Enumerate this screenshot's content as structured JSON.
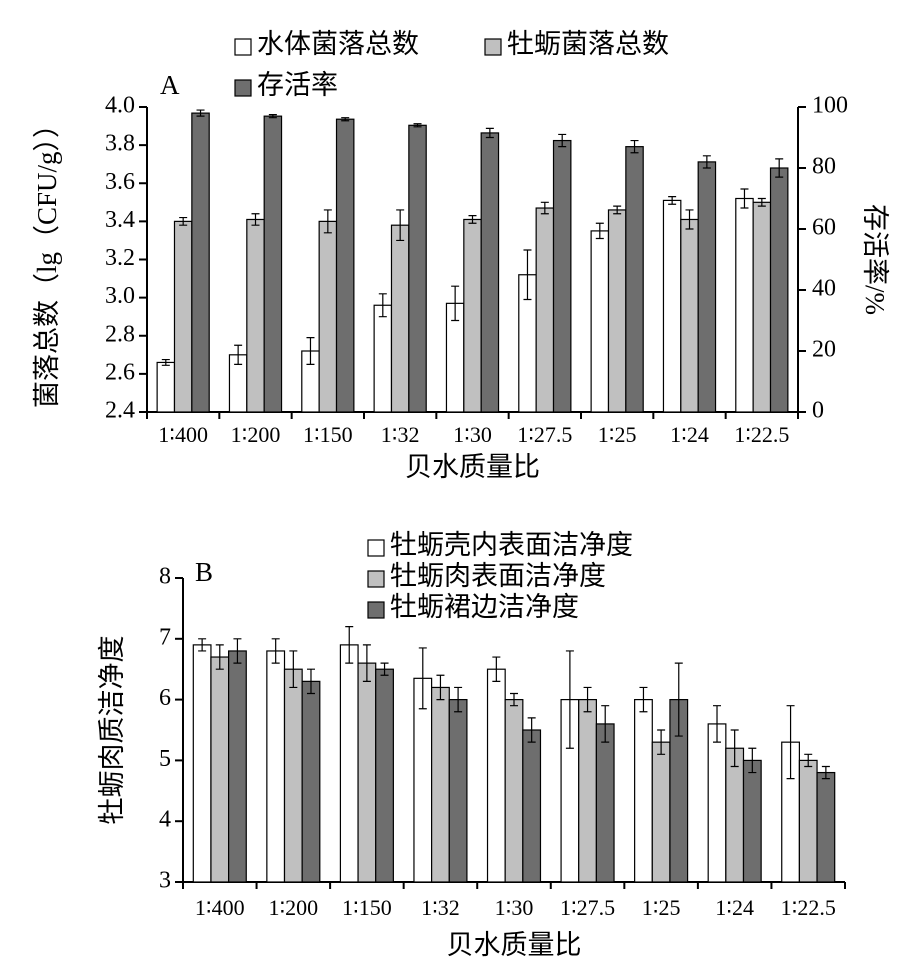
{
  "chart_data": [
    {
      "type": "bar",
      "panel_label": "A",
      "x_label": "贝水质量比",
      "y_label": "菌落总数（lg（CFU/g））",
      "y2_label": "存活率/%",
      "categories": [
        "1∶400",
        "1∶200",
        "1∶150",
        "1∶32",
        "1∶30",
        "1∶27.5",
        "1∶25",
        "1∶24",
        "1∶22.5"
      ],
      "series": [
        {
          "name": "水体菌落总数",
          "color": "#ffffff",
          "values": [
            2.66,
            2.7,
            2.72,
            2.96,
            2.97,
            3.12,
            3.35,
            3.51,
            3.52
          ],
          "errors": [
            0.015,
            0.05,
            0.07,
            0.06,
            0.09,
            0.13,
            0.04,
            0.02,
            0.05
          ]
        },
        {
          "name": "牡蛎菌落总数",
          "color": "#c0c0c0",
          "values": [
            3.4,
            3.41,
            3.4,
            3.38,
            3.41,
            3.47,
            3.46,
            3.41,
            3.5
          ],
          "errors": [
            0.02,
            0.03,
            0.06,
            0.08,
            0.02,
            0.03,
            0.02,
            0.05,
            0.02
          ]
        },
        {
          "name": "存活率",
          "color": "#6e6e6e",
          "axis": "y2",
          "values": [
            98,
            97,
            96,
            94,
            91.5,
            89,
            87,
            82,
            80
          ],
          "errors": [
            1,
            0.5,
            0.5,
            0.5,
            1.5,
            2,
            2,
            2,
            3
          ]
        }
      ],
      "ylim": [
        2.4,
        4.0
      ],
      "yticks": [
        2.4,
        2.6,
        2.8,
        {
          "value": 3.0,
          "label": "3.0"
        },
        3.2,
        3.4,
        3.6,
        3.8,
        {
          "value": 4.0,
          "label": "4.0"
        }
      ],
      "y2lim": [
        0,
        100
      ],
      "y2ticks": [
        0,
        20,
        40,
        60,
        80,
        100
      ]
    },
    {
      "type": "bar",
      "panel_label": "B",
      "x_label": "贝水质量比",
      "y_label": "牡蛎肉质洁净度",
      "categories": [
        "1∶400",
        "1∶200",
        "1∶150",
        "1∶32",
        "1∶30",
        "1∶27.5",
        "1∶25",
        "1∶24",
        "1∶22.5"
      ],
      "series": [
        {
          "name": "牡蛎壳内表面洁净度",
          "color": "#ffffff",
          "values": [
            6.9,
            6.8,
            6.9,
            6.35,
            6.5,
            6.0,
            6.0,
            5.6,
            5.3
          ],
          "errors": [
            0.1,
            0.2,
            0.3,
            0.5,
            0.2,
            0.8,
            0.2,
            0.3,
            0.6
          ]
        },
        {
          "name": "牡蛎肉表面洁净度",
          "color": "#c0c0c0",
          "values": [
            6.7,
            6.5,
            6.6,
            6.2,
            6.0,
            6.0,
            5.3,
            5.2,
            5.0
          ],
          "errors": [
            0.2,
            0.3,
            0.3,
            0.2,
            0.1,
            0.2,
            0.2,
            0.3,
            0.1
          ]
        },
        {
          "name": "牡蛎裙边洁净度",
          "color": "#6e6e6e",
          "values": [
            6.8,
            6.3,
            6.5,
            6.0,
            5.5,
            5.6,
            6.0,
            5.0,
            4.8
          ],
          "errors": [
            0.2,
            0.2,
            0.1,
            0.2,
            0.2,
            0.3,
            0.6,
            0.2,
            0.1
          ]
        }
      ],
      "ylim": [
        3,
        8
      ],
      "yticks": [
        3,
        4,
        5,
        6,
        7,
        8
      ]
    }
  ]
}
